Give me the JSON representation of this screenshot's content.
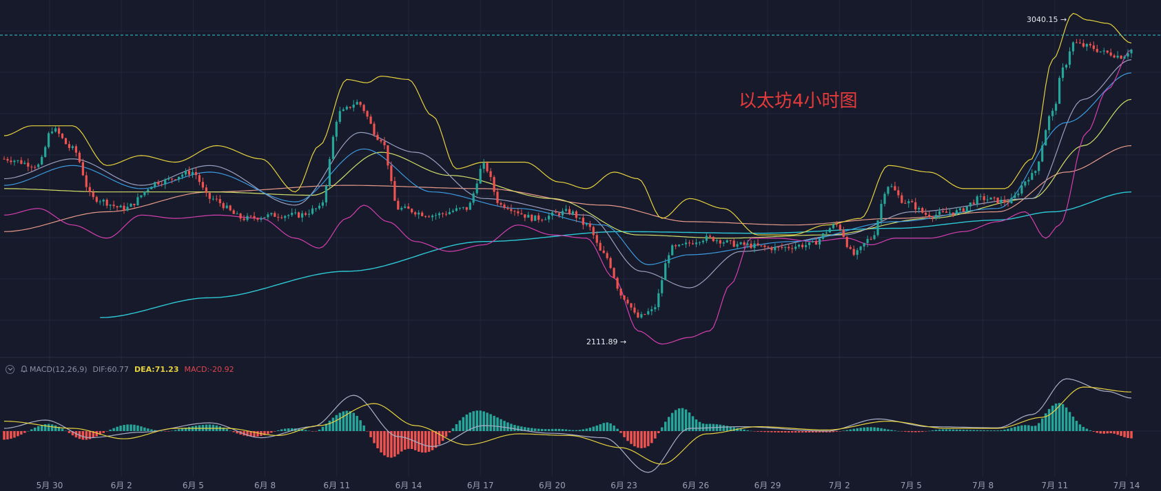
{
  "colors": {
    "background": "#161a2b",
    "up": "#26a69a",
    "down": "#ef5350",
    "grid": "#222738",
    "boll_band": "#e8d33f",
    "boll_lower": "#d63fb0",
    "ma_long": "#2ec9d6",
    "ma_peach": "#e89b8a",
    "ma_lime": "#d4e06a",
    "ma_blue": "#3d9be0",
    "ma_gray": "#9aa0c0",
    "dif_line": "#aab0c8",
    "dea_line": "#e8d33f"
  },
  "annotation": {
    "title": "以太坊4小时图",
    "high_label": "3040.15 →",
    "low_label": "2111.89 →"
  },
  "macd_legend": {
    "name": "MACD(12,26,9)",
    "dif": "DIF:60.77",
    "dea": "DEA:71.23",
    "macd": "MACD:-20.92"
  },
  "icons": {
    "collapse": "chevron-down-circle-icon",
    "alert": "bell-icon"
  },
  "chart_data": {
    "type": "candlestick",
    "x_tick_labels": [
      "5月 30",
      "6月 2",
      "6月 5",
      "6月 8",
      "6月 11",
      "6月 14",
      "6月 17",
      "6月 20",
      "6月 23",
      "6月 26",
      "6月 29",
      "7月 2",
      "7月 5",
      "7月 8",
      "7月 11",
      "7月 14"
    ],
    "price_anchors": [
      {
        "t": 0,
        "p": 2620
      },
      {
        "t": 10,
        "p": 2600
      },
      {
        "t": 14,
        "p": 2710
      },
      {
        "t": 20,
        "p": 2650
      },
      {
        "t": 26,
        "p": 2500
      },
      {
        "t": 35,
        "p": 2470
      },
      {
        "t": 45,
        "p": 2550
      },
      {
        "t": 55,
        "p": 2580
      },
      {
        "t": 60,
        "p": 2500
      },
      {
        "t": 70,
        "p": 2440
      },
      {
        "t": 80,
        "p": 2450
      },
      {
        "t": 86,
        "p": 2450
      },
      {
        "t": 92,
        "p": 2470
      },
      {
        "t": 98,
        "p": 2760
      },
      {
        "t": 103,
        "p": 2790
      },
      {
        "t": 110,
        "p": 2680
      },
      {
        "t": 115,
        "p": 2470
      },
      {
        "t": 125,
        "p": 2450
      },
      {
        "t": 135,
        "p": 2470
      },
      {
        "t": 140,
        "p": 2600
      },
      {
        "t": 145,
        "p": 2480
      },
      {
        "t": 155,
        "p": 2440
      },
      {
        "t": 165,
        "p": 2460
      },
      {
        "t": 170,
        "p": 2420
      },
      {
        "t": 175,
        "p": 2330
      },
      {
        "t": 181,
        "p": 2200
      },
      {
        "t": 185,
        "p": 2140
      },
      {
        "t": 189,
        "p": 2160
      },
      {
        "t": 195,
        "p": 2350
      },
      {
        "t": 205,
        "p": 2380
      },
      {
        "t": 215,
        "p": 2360
      },
      {
        "t": 225,
        "p": 2350
      },
      {
        "t": 235,
        "p": 2360
      },
      {
        "t": 243,
        "p": 2420
      },
      {
        "t": 248,
        "p": 2330
      },
      {
        "t": 253,
        "p": 2380
      },
      {
        "t": 258,
        "p": 2540
      },
      {
        "t": 263,
        "p": 2490
      },
      {
        "t": 270,
        "p": 2450
      },
      {
        "t": 278,
        "p": 2460
      },
      {
        "t": 285,
        "p": 2500
      },
      {
        "t": 293,
        "p": 2490
      },
      {
        "t": 300,
        "p": 2570
      },
      {
        "t": 306,
        "p": 2760
      },
      {
        "t": 309,
        "p": 2890
      },
      {
        "t": 312,
        "p": 2970
      },
      {
        "t": 316,
        "p": 2960
      },
      {
        "t": 322,
        "p": 2940
      },
      {
        "t": 326,
        "p": 2930
      },
      {
        "t": 329,
        "p": 2950
      }
    ],
    "bollinger_upper_anchors": [
      {
        "t": 0,
        "p": 2690
      },
      {
        "t": 8,
        "p": 2720
      },
      {
        "t": 20,
        "p": 2720
      },
      {
        "t": 30,
        "p": 2600
      },
      {
        "t": 40,
        "p": 2630
      },
      {
        "t": 50,
        "p": 2610
      },
      {
        "t": 62,
        "p": 2660
      },
      {
        "t": 75,
        "p": 2620
      },
      {
        "t": 85,
        "p": 2520
      },
      {
        "t": 92,
        "p": 2660
      },
      {
        "t": 100,
        "p": 2860
      },
      {
        "t": 106,
        "p": 2850
      },
      {
        "t": 110,
        "p": 2870
      },
      {
        "t": 118,
        "p": 2860
      },
      {
        "t": 125,
        "p": 2750
      },
      {
        "t": 132,
        "p": 2590
      },
      {
        "t": 140,
        "p": 2610
      },
      {
        "t": 152,
        "p": 2610
      },
      {
        "t": 162,
        "p": 2550
      },
      {
        "t": 170,
        "p": 2530
      },
      {
        "t": 178,
        "p": 2580
      },
      {
        "t": 185,
        "p": 2560
      },
      {
        "t": 192,
        "p": 2440
      },
      {
        "t": 200,
        "p": 2500
      },
      {
        "t": 210,
        "p": 2470
      },
      {
        "t": 220,
        "p": 2390
      },
      {
        "t": 230,
        "p": 2390
      },
      {
        "t": 240,
        "p": 2420
      },
      {
        "t": 250,
        "p": 2440
      },
      {
        "t": 258,
        "p": 2600
      },
      {
        "t": 270,
        "p": 2580
      },
      {
        "t": 280,
        "p": 2530
      },
      {
        "t": 292,
        "p": 2530
      },
      {
        "t": 300,
        "p": 2620
      },
      {
        "t": 306,
        "p": 2920
      },
      {
        "t": 312,
        "p": 3060
      },
      {
        "t": 316,
        "p": 3040
      },
      {
        "t": 322,
        "p": 3030
      },
      {
        "t": 329,
        "p": 2970
      }
    ],
    "bollinger_lower_anchors": [
      {
        "t": 0,
        "p": 2450
      },
      {
        "t": 10,
        "p": 2470
      },
      {
        "t": 20,
        "p": 2420
      },
      {
        "t": 30,
        "p": 2380
      },
      {
        "t": 40,
        "p": 2450
      },
      {
        "t": 50,
        "p": 2440
      },
      {
        "t": 62,
        "p": 2450
      },
      {
        "t": 75,
        "p": 2440
      },
      {
        "t": 85,
        "p": 2380
      },
      {
        "t": 92,
        "p": 2350
      },
      {
        "t": 100,
        "p": 2440
      },
      {
        "t": 105,
        "p": 2480
      },
      {
        "t": 112,
        "p": 2430
      },
      {
        "t": 120,
        "p": 2370
      },
      {
        "t": 130,
        "p": 2340
      },
      {
        "t": 140,
        "p": 2360
      },
      {
        "t": 150,
        "p": 2420
      },
      {
        "t": 160,
        "p": 2390
      },
      {
        "t": 170,
        "p": 2380
      },
      {
        "t": 178,
        "p": 2260
      },
      {
        "t": 185,
        "p": 2100
      },
      {
        "t": 192,
        "p": 2060
      },
      {
        "t": 200,
        "p": 2080
      },
      {
        "t": 206,
        "p": 2100
      },
      {
        "t": 212,
        "p": 2240
      },
      {
        "t": 218,
        "p": 2380
      },
      {
        "t": 226,
        "p": 2380
      },
      {
        "t": 236,
        "p": 2370
      },
      {
        "t": 246,
        "p": 2380
      },
      {
        "t": 253,
        "p": 2360
      },
      {
        "t": 260,
        "p": 2380
      },
      {
        "t": 270,
        "p": 2380
      },
      {
        "t": 280,
        "p": 2400
      },
      {
        "t": 290,
        "p": 2430
      },
      {
        "t": 298,
        "p": 2460
      },
      {
        "t": 304,
        "p": 2380
      },
      {
        "t": 308,
        "p": 2420
      },
      {
        "t": 316,
        "p": 2700
      },
      {
        "t": 322,
        "p": 2830
      },
      {
        "t": 329,
        "p": 2950
      }
    ],
    "ma_long_anchors": [
      {
        "t": 28,
        "p": 2140
      },
      {
        "t": 60,
        "p": 2200
      },
      {
        "t": 100,
        "p": 2280
      },
      {
        "t": 140,
        "p": 2370
      },
      {
        "t": 180,
        "p": 2400
      },
      {
        "t": 220,
        "p": 2395
      },
      {
        "t": 260,
        "p": 2410
      },
      {
        "t": 290,
        "p": 2435
      },
      {
        "t": 306,
        "p": 2460
      },
      {
        "t": 329,
        "p": 2520
      }
    ],
    "ma_peach_anchors": [
      {
        "t": 0,
        "p": 2400
      },
      {
        "t": 30,
        "p": 2460
      },
      {
        "t": 60,
        "p": 2520
      },
      {
        "t": 100,
        "p": 2540
      },
      {
        "t": 140,
        "p": 2530
      },
      {
        "t": 175,
        "p": 2480
      },
      {
        "t": 200,
        "p": 2430
      },
      {
        "t": 230,
        "p": 2420
      },
      {
        "t": 260,
        "p": 2440
      },
      {
        "t": 290,
        "p": 2460
      },
      {
        "t": 310,
        "p": 2580
      },
      {
        "t": 329,
        "p": 2660
      }
    ],
    "ma_lime_anchors": [
      {
        "t": 0,
        "p": 2530
      },
      {
        "t": 30,
        "p": 2520
      },
      {
        "t": 60,
        "p": 2520
      },
      {
        "t": 90,
        "p": 2510
      },
      {
        "t": 110,
        "p": 2640
      },
      {
        "t": 130,
        "p": 2570
      },
      {
        "t": 160,
        "p": 2500
      },
      {
        "t": 185,
        "p": 2390
      },
      {
        "t": 210,
        "p": 2380
      },
      {
        "t": 240,
        "p": 2390
      },
      {
        "t": 270,
        "p": 2440
      },
      {
        "t": 300,
        "p": 2500
      },
      {
        "t": 315,
        "p": 2660
      },
      {
        "t": 329,
        "p": 2800
      }
    ],
    "ma_blue_anchors": [
      {
        "t": 0,
        "p": 2540
      },
      {
        "t": 20,
        "p": 2600
      },
      {
        "t": 40,
        "p": 2530
      },
      {
        "t": 60,
        "p": 2580
      },
      {
        "t": 85,
        "p": 2490
      },
      {
        "t": 105,
        "p": 2650
      },
      {
        "t": 125,
        "p": 2520
      },
      {
        "t": 150,
        "p": 2470
      },
      {
        "t": 175,
        "p": 2420
      },
      {
        "t": 188,
        "p": 2300
      },
      {
        "t": 200,
        "p": 2330
      },
      {
        "t": 230,
        "p": 2370
      },
      {
        "t": 260,
        "p": 2430
      },
      {
        "t": 290,
        "p": 2470
      },
      {
        "t": 310,
        "p": 2730
      },
      {
        "t": 329,
        "p": 2880
      }
    ],
    "ma_gray_anchors": [
      {
        "t": 0,
        "p": 2560
      },
      {
        "t": 20,
        "p": 2620
      },
      {
        "t": 40,
        "p": 2540
      },
      {
        "t": 60,
        "p": 2600
      },
      {
        "t": 85,
        "p": 2480
      },
      {
        "t": 104,
        "p": 2700
      },
      {
        "t": 120,
        "p": 2640
      },
      {
        "t": 140,
        "p": 2500
      },
      {
        "t": 170,
        "p": 2450
      },
      {
        "t": 186,
        "p": 2280
      },
      {
        "t": 200,
        "p": 2230
      },
      {
        "t": 215,
        "p": 2340
      },
      {
        "t": 245,
        "p": 2390
      },
      {
        "t": 265,
        "p": 2460
      },
      {
        "t": 300,
        "p": 2500
      },
      {
        "t": 315,
        "p": 2800
      },
      {
        "t": 329,
        "p": 2920
      }
    ],
    "dif_anchors": [
      {
        "t": 0,
        "p": 5
      },
      {
        "t": 12,
        "p": 20
      },
      {
        "t": 25,
        "p": -12
      },
      {
        "t": 40,
        "p": -2
      },
      {
        "t": 60,
        "p": 15
      },
      {
        "t": 75,
        "p": -12
      },
      {
        "t": 90,
        "p": 8
      },
      {
        "t": 102,
        "p": 65
      },
      {
        "t": 115,
        "p": -10
      },
      {
        "t": 125,
        "p": -28
      },
      {
        "t": 140,
        "p": 10
      },
      {
        "t": 160,
        "p": -4
      },
      {
        "t": 175,
        "p": -12
      },
      {
        "t": 188,
        "p": -75
      },
      {
        "t": 200,
        "p": 5
      },
      {
        "t": 215,
        "p": 8
      },
      {
        "t": 240,
        "p": 0
      },
      {
        "t": 255,
        "p": 22
      },
      {
        "t": 270,
        "p": 8
      },
      {
        "t": 290,
        "p": 6
      },
      {
        "t": 300,
        "p": 30
      },
      {
        "t": 310,
        "p": 95
      },
      {
        "t": 322,
        "p": 72
      },
      {
        "t": 329,
        "p": 60
      }
    ],
    "dea_anchors": [
      {
        "t": 0,
        "p": 18
      },
      {
        "t": 20,
        "p": 5
      },
      {
        "t": 35,
        "p": -14
      },
      {
        "t": 50,
        "p": 5
      },
      {
        "t": 65,
        "p": 5
      },
      {
        "t": 80,
        "p": -8
      },
      {
        "t": 92,
        "p": 10
      },
      {
        "t": 108,
        "p": 50
      },
      {
        "t": 120,
        "p": 10
      },
      {
        "t": 135,
        "p": -25
      },
      {
        "t": 150,
        "p": -5
      },
      {
        "t": 165,
        "p": -8
      },
      {
        "t": 180,
        "p": -30
      },
      {
        "t": 192,
        "p": -60
      },
      {
        "t": 205,
        "p": -5
      },
      {
        "t": 220,
        "p": 8
      },
      {
        "t": 240,
        "p": 2
      },
      {
        "t": 258,
        "p": 18
      },
      {
        "t": 275,
        "p": 5
      },
      {
        "t": 290,
        "p": 5
      },
      {
        "t": 303,
        "p": 25
      },
      {
        "t": 315,
        "p": 80
      },
      {
        "t": 329,
        "p": 71
      }
    ],
    "high_marker": {
      "value": 3040.15
    },
    "low_marker": {
      "value": 2111.89
    },
    "price_range": [
      2080,
      3090
    ],
    "macd_range": [
      -80,
      95
    ],
    "periods": 330,
    "grid": true
  }
}
